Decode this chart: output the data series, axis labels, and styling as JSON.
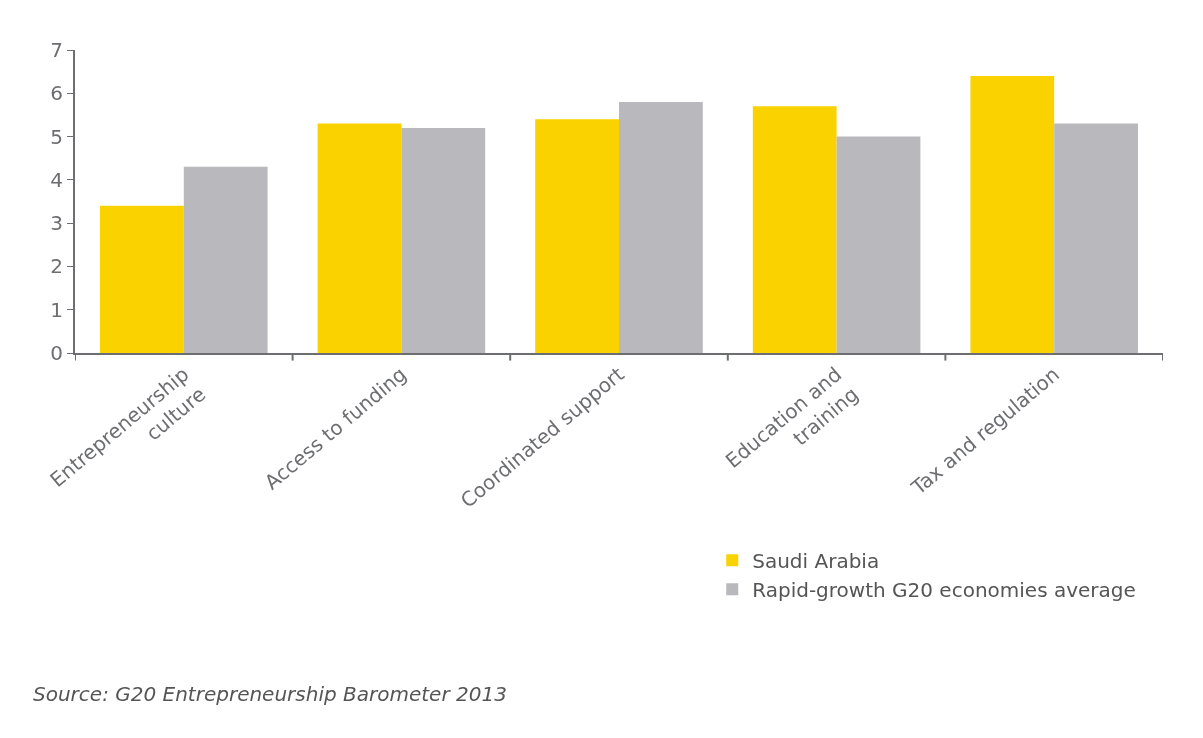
{
  "chart_data": {
    "type": "bar",
    "categories": [
      "Entrepreneurship\nculture",
      "Access to funding",
      "Coordinated support",
      "Education and\ntraining",
      "Tax and regulation"
    ],
    "series": [
      {
        "name": "Saudi Arabia",
        "color": "#f9d200",
        "values": [
          3.4,
          5.3,
          5.4,
          5.7,
          6.4
        ]
      },
      {
        "name": "Rapid-growth G20 economies average",
        "color": "#b9b8bd",
        "values": [
          4.3,
          5.2,
          5.8,
          5.0,
          5.3
        ]
      }
    ],
    "ylim": [
      0,
      7
    ],
    "yticks": [
      0,
      1,
      2,
      3,
      4,
      5,
      6,
      7
    ],
    "legend": "bottom right",
    "annotations": [
      "Source: G20 Entrepreneurship Barometer 2013"
    ]
  }
}
